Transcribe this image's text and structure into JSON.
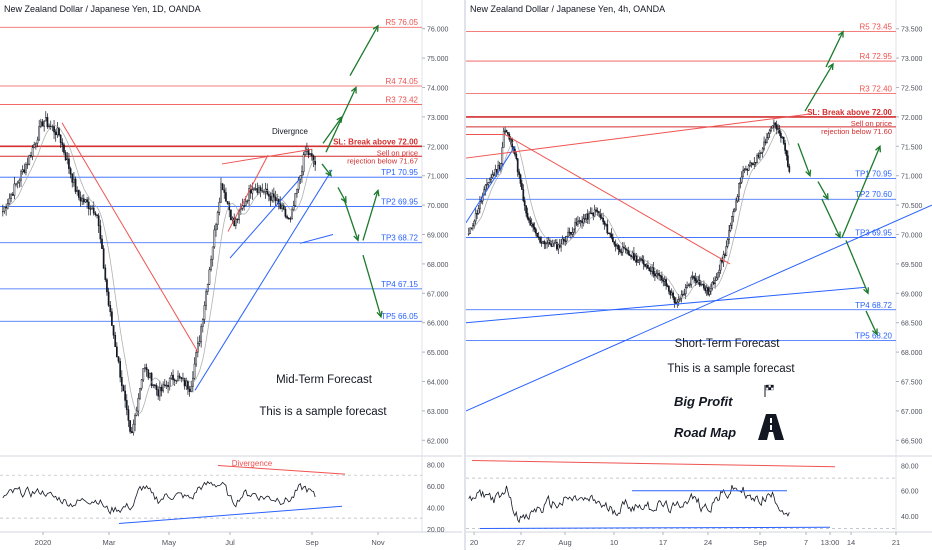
{
  "left": {
    "title": "New Zealand Dollar / Japanese Yen, 1D, OANDA",
    "price_axis": [
      "76.000",
      "75.000",
      "74.000",
      "73.000",
      "72.000",
      "71.000",
      "70.000",
      "69.000",
      "68.000",
      "67.000",
      "66.000",
      "65.000",
      "64.000",
      "63.000",
      "62.000"
    ],
    "rsi_axis": [
      "80.00",
      "60.00",
      "40.00",
      "20.00"
    ],
    "time_axis": [
      "2020",
      "Mar",
      "May",
      "Jul",
      "Sep",
      "Nov"
    ],
    "levels": [
      {
        "label": "R5 76.05",
        "price": 76.05,
        "color": "#ef5350"
      },
      {
        "label": "R4 74.05",
        "price": 74.05,
        "color": "#ef5350"
      },
      {
        "label": "R3 73.42",
        "price": 73.42,
        "color": "#ef5350"
      },
      {
        "label": "SL: Break above 72.00",
        "price": 72.0,
        "color": "#d32f2f"
      },
      {
        "label": "TP1 70.95",
        "price": 70.95,
        "color": "#2962ff"
      },
      {
        "label": "TP2 69.95",
        "price": 69.95,
        "color": "#2962ff"
      },
      {
        "label": "TP3 68.72",
        "price": 68.72,
        "color": "#2962ff"
      },
      {
        "label": "TP4 67.15",
        "price": 67.15,
        "color": "#2962ff"
      },
      {
        "label": "TP5 66.05",
        "price": 66.05,
        "color": "#2962ff"
      }
    ],
    "sell_note": [
      "Sell on price",
      "rejection below 71.67"
    ],
    "divergence_label": "Divergnce",
    "rsi_divergence_label": "Divergence",
    "forecast_title": "Mid-Term Forecast",
    "forecast_subtitle": "This is a sample forecast"
  },
  "right": {
    "title": "New Zealand Dollar / Japanese Yen, 4h, OANDA",
    "price_axis": [
      "73.500",
      "73.000",
      "72.500",
      "72.000",
      "71.500",
      "71.000",
      "70.500",
      "70.000",
      "69.500",
      "69.000",
      "68.500",
      "68.000",
      "67.500",
      "67.000",
      "66.500"
    ],
    "rsi_axis": [
      "80.00",
      "60.00",
      "40.00"
    ],
    "time_axis": [
      "20",
      "27",
      "Aug",
      "10",
      "17",
      "24",
      "Sep",
      "7",
      "13:00",
      "14",
      "21"
    ],
    "levels": [
      {
        "label": "R5 73.45",
        "price": 73.45,
        "color": "#ef5350"
      },
      {
        "label": "R4 72.95",
        "price": 72.95,
        "color": "#ef5350"
      },
      {
        "label": "R3 72.40",
        "price": 72.4,
        "color": "#ef5350"
      },
      {
        "label": "SL: Break above 72.00",
        "price": 72.0,
        "color": "#d32f2f"
      },
      {
        "label": "TP1 70.95",
        "price": 70.95,
        "color": "#2962ff"
      },
      {
        "label": "TP2 70.60",
        "price": 70.6,
        "color": "#2962ff"
      },
      {
        "label": "TP3 69.95",
        "price": 69.95,
        "color": "#2962ff"
      },
      {
        "label": "TP4 68.72",
        "price": 68.72,
        "color": "#2962ff"
      },
      {
        "label": "TP5 68.20",
        "price": 68.2,
        "color": "#2962ff"
      }
    ],
    "sell_note": [
      "Sell on price",
      "rejection below 71.60"
    ],
    "forecast_title": "Short-Term Forecast",
    "forecast_subtitle": "This is a sample forecast",
    "brand_line1": "Big Profit",
    "brand_line2": "Road Map"
  },
  "chart_data": [
    {
      "type": "candlestick",
      "title": "New Zealand Dollar / Japanese Yen, 1D, OANDA",
      "ylim": [
        61.5,
        76.5
      ],
      "x": [
        "2019-12",
        "2020-01",
        "2020-02",
        "2020-03",
        "2020-04",
        "2020-05",
        "2020-06",
        "2020-07",
        "2020-08",
        "2020-09"
      ],
      "close": [
        70.5,
        72.8,
        70.0,
        64.5,
        64.5,
        63.7,
        69.0,
        70.7,
        69.4,
        71.67
      ]
    },
    {
      "type": "candlestick",
      "title": "New Zealand Dollar / Japanese Yen, 4h, OANDA",
      "ylim": [
        66.25,
        73.75
      ],
      "x": [
        "2020-07-20",
        "2020-07-27",
        "2020-08-03",
        "2020-08-10",
        "2020-08-17",
        "2020-08-24",
        "2020-09-01",
        "2020-09-04"
      ],
      "close": [
        70.5,
        71.7,
        70.1,
        70.0,
        69.5,
        68.8,
        71.5,
        71.1
      ]
    }
  ]
}
